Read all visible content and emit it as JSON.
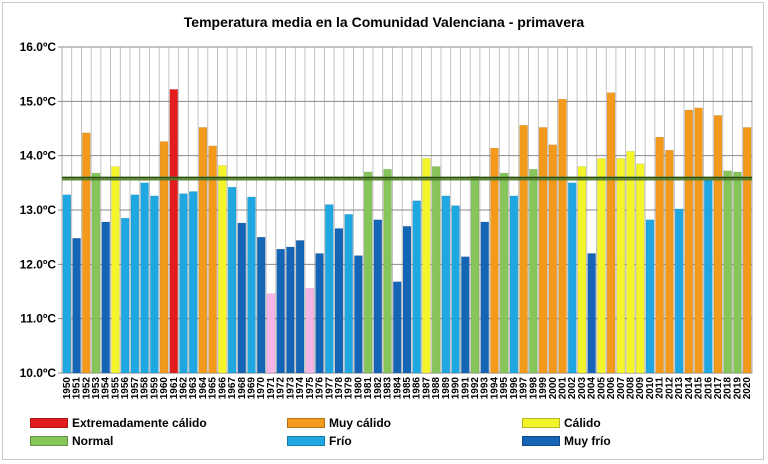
{
  "chart_data": {
    "type": "bar",
    "title": "Temperatura  media  en  la  Comunidad  Valenciana  -  primavera",
    "xlabel": "",
    "ylabel": "",
    "ylim": [
      10.0,
      16.0
    ],
    "yticks": [
      "10.0ºC",
      "11.0ºC",
      "12.0ºC",
      "13.0ºC",
      "14.0ºC",
      "15.0ºC",
      "16.0ºC"
    ],
    "grid": true,
    "reference_line": 13.58,
    "colors": {
      "EC": "#e31c1c",
      "MC": "#f39a1d",
      "C": "#f4f42a",
      "N": "#86c55a",
      "F": "#1ea7e1",
      "MF": "#1565b6",
      "X": "#f4b6e6",
      "reference_line": "#4f7a28"
    },
    "legend": [
      {
        "label": "Extremadamente cálido",
        "cls": "EC"
      },
      {
        "label": "Muy cálido",
        "cls": "MC"
      },
      {
        "label": "Cálido",
        "cls": "C"
      },
      {
        "label": "Normal",
        "cls": "N"
      },
      {
        "label": "Frío",
        "cls": "F"
      },
      {
        "label": "Muy frío",
        "cls": "MF"
      }
    ],
    "categories": [
      "1950",
      "1951",
      "1952",
      "1953",
      "1954",
      "1955",
      "1956",
      "1957",
      "1958",
      "1959",
      "1960",
      "1961",
      "1962",
      "1963",
      "1964",
      "1965",
      "1966",
      "1967",
      "1968",
      "1969",
      "1970",
      "1971",
      "1972",
      "1973",
      "1974",
      "1975",
      "1976",
      "1977",
      "1978",
      "1979",
      "1980",
      "1981",
      "1982",
      "1983",
      "1984",
      "1985",
      "1986",
      "1987",
      "1988",
      "1989",
      "1990",
      "1991",
      "1992",
      "1993",
      "1994",
      "1995",
      "1996",
      "1997",
      "1998",
      "1999",
      "2000",
      "2001",
      "2002",
      "2003",
      "2004",
      "2005",
      "2006",
      "2007",
      "2008",
      "2009",
      "2010",
      "2011",
      "2012",
      "2013",
      "2014",
      "2015",
      "2016",
      "2017",
      "2018",
      "2019",
      "2020"
    ],
    "values": [
      13.28,
      12.48,
      14.42,
      13.68,
      12.78,
      13.8,
      12.85,
      13.28,
      13.5,
      13.26,
      14.26,
      15.22,
      13.3,
      13.34,
      14.52,
      14.18,
      13.82,
      13.42,
      12.76,
      13.24,
      12.5,
      11.46,
      12.28,
      12.32,
      12.44,
      11.56,
      12.2,
      13.1,
      12.66,
      12.92,
      12.16,
      13.7,
      12.82,
      13.75,
      11.68,
      12.7,
      13.17,
      13.95,
      13.8,
      13.26,
      13.08,
      12.14,
      13.62,
      12.78,
      14.14,
      13.68,
      13.26,
      14.56,
      13.75,
      14.52,
      14.2,
      15.04,
      13.5,
      13.8,
      12.2,
      13.95,
      15.16,
      13.95,
      14.08,
      13.85,
      12.82,
      14.34,
      14.1,
      13.02,
      14.84,
      14.88,
      13.56,
      14.74,
      13.72,
      13.7,
      14.52
    ],
    "classes": [
      "F",
      "MF",
      "MC",
      "N",
      "MF",
      "C",
      "F",
      "F",
      "F",
      "F",
      "MC",
      "EC",
      "F",
      "F",
      "MC",
      "MC",
      "C",
      "F",
      "MF",
      "F",
      "MF",
      "X",
      "MF",
      "MF",
      "MF",
      "X",
      "MF",
      "F",
      "MF",
      "F",
      "MF",
      "N",
      "MF",
      "N",
      "MF",
      "MF",
      "F",
      "C",
      "N",
      "F",
      "F",
      "MF",
      "N",
      "MF",
      "MC",
      "N",
      "F",
      "MC",
      "N",
      "MC",
      "MC",
      "MC",
      "F",
      "C",
      "MF",
      "C",
      "MC",
      "C",
      "C",
      "C",
      "F",
      "MC",
      "MC",
      "F",
      "MC",
      "MC",
      "F",
      "MC",
      "N",
      "N",
      "MC"
    ]
  }
}
